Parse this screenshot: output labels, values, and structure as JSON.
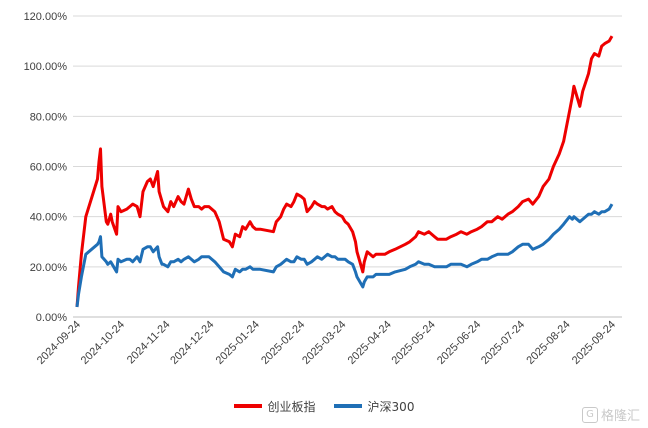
{
  "chart_data": {
    "type": "line",
    "title": "",
    "xlabel": "",
    "ylabel": "",
    "ylim": [
      0,
      120
    ],
    "y_ticks": [
      "0.00%",
      "20.00%",
      "40.00%",
      "60.00%",
      "80.00%",
      "100.00%",
      "120.00%"
    ],
    "x_ticks": [
      "2024-09-24",
      "2024-10-24",
      "2024-11-24",
      "2024-12-24",
      "2025-01-24",
      "2025-02-24",
      "2025-03-24",
      "2025-04-24",
      "2025-05-24",
      "2025-06-24",
      "2025-07-24",
      "2025-08-24",
      "2025-09-24"
    ],
    "grid": "horizontal",
    "legend_placement": "bottom",
    "series": [
      {
        "name": "创业板指",
        "color": "#ee0000",
        "points": [
          [
            "2024-09-24",
            4
          ],
          [
            "2024-09-25",
            12
          ],
          [
            "2024-09-27",
            25
          ],
          [
            "2024-09-30",
            40
          ],
          [
            "2024-10-08",
            55
          ],
          [
            "2024-10-09",
            62
          ],
          [
            "2024-10-10",
            67
          ],
          [
            "2024-10-11",
            52
          ],
          [
            "2024-10-14",
            38
          ],
          [
            "2024-10-15",
            37
          ],
          [
            "2024-10-17",
            41
          ],
          [
            "2024-10-18",
            38
          ],
          [
            "2024-10-21",
            33
          ],
          [
            "2024-10-22",
            44
          ],
          [
            "2024-10-24",
            42
          ],
          [
            "2024-10-28",
            43
          ],
          [
            "2024-10-30",
            44
          ],
          [
            "2024-11-01",
            45
          ],
          [
            "2024-11-04",
            44
          ],
          [
            "2024-11-06",
            40
          ],
          [
            "2024-11-08",
            50
          ],
          [
            "2024-11-11",
            54
          ],
          [
            "2024-11-13",
            55
          ],
          [
            "2024-11-15",
            52
          ],
          [
            "2024-11-18",
            58
          ],
          [
            "2024-11-19",
            50
          ],
          [
            "2024-11-21",
            46
          ],
          [
            "2024-11-22",
            44
          ],
          [
            "2024-11-25",
            42
          ],
          [
            "2024-11-27",
            46
          ],
          [
            "2024-11-29",
            44
          ],
          [
            "2024-12-02",
            48
          ],
          [
            "2024-12-04",
            46
          ],
          [
            "2024-12-06",
            45
          ],
          [
            "2024-12-09",
            51
          ],
          [
            "2024-12-11",
            47
          ],
          [
            "2024-12-13",
            44
          ],
          [
            "2024-12-16",
            44
          ],
          [
            "2024-12-18",
            43
          ],
          [
            "2024-12-20",
            44
          ],
          [
            "2024-12-23",
            44
          ],
          [
            "2024-12-25",
            43
          ],
          [
            "2024-12-27",
            42
          ],
          [
            "2024-12-30",
            38
          ],
          [
            "2025-01-02",
            31
          ],
          [
            "2025-01-06",
            30
          ],
          [
            "2025-01-08",
            28
          ],
          [
            "2025-01-10",
            33
          ],
          [
            "2025-01-13",
            32
          ],
          [
            "2025-01-15",
            36
          ],
          [
            "2025-01-17",
            35
          ],
          [
            "2025-01-20",
            38
          ],
          [
            "2025-01-22",
            36
          ],
          [
            "2025-01-24",
            35
          ],
          [
            "2025-01-27",
            35
          ],
          [
            "2025-02-05",
            34
          ],
          [
            "2025-02-07",
            38
          ],
          [
            "2025-02-10",
            40
          ],
          [
            "2025-02-12",
            43
          ],
          [
            "2025-02-14",
            45
          ],
          [
            "2025-02-17",
            44
          ],
          [
            "2025-02-19",
            46
          ],
          [
            "2025-02-21",
            49
          ],
          [
            "2025-02-24",
            48
          ],
          [
            "2025-02-26",
            47
          ],
          [
            "2025-02-28",
            42
          ],
          [
            "2025-03-03",
            44
          ],
          [
            "2025-03-05",
            46
          ],
          [
            "2025-03-07",
            45
          ],
          [
            "2025-03-10",
            44
          ],
          [
            "2025-03-12",
            44
          ],
          [
            "2025-03-14",
            43
          ],
          [
            "2025-03-17",
            44
          ],
          [
            "2025-03-19",
            42
          ],
          [
            "2025-03-21",
            41
          ],
          [
            "2025-03-24",
            40
          ],
          [
            "2025-03-26",
            38
          ],
          [
            "2025-03-28",
            37
          ],
          [
            "2025-03-31",
            34
          ],
          [
            "2025-04-02",
            30
          ],
          [
            "2025-04-03",
            26
          ],
          [
            "2025-04-07",
            18
          ],
          [
            "2025-04-08",
            22
          ],
          [
            "2025-04-10",
            26
          ],
          [
            "2025-04-14",
            24
          ],
          [
            "2025-04-16",
            25
          ],
          [
            "2025-04-18",
            25
          ],
          [
            "2025-04-22",
            25
          ],
          [
            "2025-04-25",
            26
          ],
          [
            "2025-04-29",
            27
          ],
          [
            "2025-05-06",
            29
          ],
          [
            "2025-05-09",
            30
          ],
          [
            "2025-05-13",
            32
          ],
          [
            "2025-05-15",
            34
          ],
          [
            "2025-05-19",
            33
          ],
          [
            "2025-05-22",
            34
          ],
          [
            "2025-05-26",
            32
          ],
          [
            "2025-05-28",
            31
          ],
          [
            "2025-06-03",
            31
          ],
          [
            "2025-06-06",
            32
          ],
          [
            "2025-06-10",
            33
          ],
          [
            "2025-06-13",
            34
          ],
          [
            "2025-06-17",
            33
          ],
          [
            "2025-06-20",
            34
          ],
          [
            "2025-06-24",
            35
          ],
          [
            "2025-06-27",
            36
          ],
          [
            "2025-07-01",
            38
          ],
          [
            "2025-07-04",
            38
          ],
          [
            "2025-07-08",
            40
          ],
          [
            "2025-07-11",
            39
          ],
          [
            "2025-07-15",
            41
          ],
          [
            "2025-07-18",
            42
          ],
          [
            "2025-07-22",
            44
          ],
          [
            "2025-07-25",
            46
          ],
          [
            "2025-07-29",
            47
          ],
          [
            "2025-08-01",
            45
          ],
          [
            "2025-08-05",
            48
          ],
          [
            "2025-08-08",
            52
          ],
          [
            "2025-08-12",
            55
          ],
          [
            "2025-08-15",
            60
          ],
          [
            "2025-08-19",
            65
          ],
          [
            "2025-08-22",
            70
          ],
          [
            "2025-08-26",
            82
          ],
          [
            "2025-08-28",
            88
          ],
          [
            "2025-08-29",
            92
          ],
          [
            "2025-09-02",
            84
          ],
          [
            "2025-09-04",
            90
          ],
          [
            "2025-09-08",
            97
          ],
          [
            "2025-09-10",
            103
          ],
          [
            "2025-09-12",
            105
          ],
          [
            "2025-09-15",
            104
          ],
          [
            "2025-09-17",
            108
          ],
          [
            "2025-09-19",
            109
          ],
          [
            "2025-09-22",
            110
          ],
          [
            "2025-09-24",
            112
          ]
        ]
      },
      {
        "name": "沪深300",
        "color": "#1f6fb6",
        "points": [
          [
            "2024-09-24",
            4
          ],
          [
            "2024-09-25",
            9
          ],
          [
            "2024-09-27",
            16
          ],
          [
            "2024-09-30",
            25
          ],
          [
            "2024-10-08",
            29
          ],
          [
            "2024-10-09",
            30
          ],
          [
            "2024-10-10",
            32
          ],
          [
            "2024-10-11",
            24
          ],
          [
            "2024-10-14",
            22
          ],
          [
            "2024-10-15",
            21
          ],
          [
            "2024-10-17",
            22
          ],
          [
            "2024-10-18",
            21
          ],
          [
            "2024-10-21",
            18
          ],
          [
            "2024-10-22",
            23
          ],
          [
            "2024-10-24",
            22
          ],
          [
            "2024-10-28",
            23
          ],
          [
            "2024-10-30",
            23
          ],
          [
            "2024-11-01",
            22
          ],
          [
            "2024-11-04",
            24
          ],
          [
            "2024-11-06",
            22
          ],
          [
            "2024-11-08",
            27
          ],
          [
            "2024-11-11",
            28
          ],
          [
            "2024-11-13",
            28
          ],
          [
            "2024-11-15",
            26
          ],
          [
            "2024-11-18",
            28
          ],
          [
            "2024-11-19",
            24
          ],
          [
            "2024-11-21",
            21
          ],
          [
            "2024-11-22",
            21
          ],
          [
            "2024-11-25",
            20
          ],
          [
            "2024-11-27",
            22
          ],
          [
            "2024-11-29",
            22
          ],
          [
            "2024-12-02",
            23
          ],
          [
            "2024-12-04",
            22
          ],
          [
            "2024-12-06",
            23
          ],
          [
            "2024-12-09",
            24
          ],
          [
            "2024-12-11",
            23
          ],
          [
            "2024-12-13",
            22
          ],
          [
            "2024-12-16",
            23
          ],
          [
            "2024-12-18",
            24
          ],
          [
            "2024-12-20",
            24
          ],
          [
            "2024-12-23",
            24
          ],
          [
            "2024-12-25",
            23
          ],
          [
            "2024-12-27",
            22
          ],
          [
            "2024-12-30",
            20
          ],
          [
            "2025-01-02",
            18
          ],
          [
            "2025-01-06",
            17
          ],
          [
            "2025-01-08",
            16
          ],
          [
            "2025-01-10",
            19
          ],
          [
            "2025-01-13",
            18
          ],
          [
            "2025-01-15",
            19
          ],
          [
            "2025-01-17",
            19
          ],
          [
            "2025-01-20",
            20
          ],
          [
            "2025-01-22",
            19
          ],
          [
            "2025-01-24",
            19
          ],
          [
            "2025-01-27",
            19
          ],
          [
            "2025-02-05",
            18
          ],
          [
            "2025-02-07",
            20
          ],
          [
            "2025-02-10",
            21
          ],
          [
            "2025-02-12",
            22
          ],
          [
            "2025-02-14",
            23
          ],
          [
            "2025-02-17",
            22
          ],
          [
            "2025-02-19",
            22
          ],
          [
            "2025-02-21",
            24
          ],
          [
            "2025-02-24",
            23
          ],
          [
            "2025-02-26",
            23
          ],
          [
            "2025-02-28",
            21
          ],
          [
            "2025-03-03",
            22
          ],
          [
            "2025-03-05",
            23
          ],
          [
            "2025-03-07",
            24
          ],
          [
            "2025-03-10",
            23
          ],
          [
            "2025-03-12",
            24
          ],
          [
            "2025-03-14",
            25
          ],
          [
            "2025-03-17",
            24
          ],
          [
            "2025-03-19",
            24
          ],
          [
            "2025-03-21",
            23
          ],
          [
            "2025-03-24",
            23
          ],
          [
            "2025-03-26",
            23
          ],
          [
            "2025-03-28",
            22
          ],
          [
            "2025-03-31",
            21
          ],
          [
            "2025-04-02",
            18
          ],
          [
            "2025-04-03",
            16
          ],
          [
            "2025-04-07",
            12
          ],
          [
            "2025-04-08",
            14
          ],
          [
            "2025-04-10",
            16
          ],
          [
            "2025-04-14",
            16
          ],
          [
            "2025-04-16",
            17
          ],
          [
            "2025-04-18",
            17
          ],
          [
            "2025-04-22",
            17
          ],
          [
            "2025-04-25",
            17
          ],
          [
            "2025-04-29",
            18
          ],
          [
            "2025-05-06",
            19
          ],
          [
            "2025-05-09",
            20
          ],
          [
            "2025-05-13",
            21
          ],
          [
            "2025-05-15",
            22
          ],
          [
            "2025-05-19",
            21
          ],
          [
            "2025-05-22",
            21
          ],
          [
            "2025-05-26",
            20
          ],
          [
            "2025-05-28",
            20
          ],
          [
            "2025-06-03",
            20
          ],
          [
            "2025-06-06",
            21
          ],
          [
            "2025-06-10",
            21
          ],
          [
            "2025-06-13",
            21
          ],
          [
            "2025-06-17",
            20
          ],
          [
            "2025-06-20",
            21
          ],
          [
            "2025-06-24",
            22
          ],
          [
            "2025-06-27",
            23
          ],
          [
            "2025-07-01",
            23
          ],
          [
            "2025-07-04",
            24
          ],
          [
            "2025-07-08",
            25
          ],
          [
            "2025-07-11",
            25
          ],
          [
            "2025-07-15",
            25
          ],
          [
            "2025-07-18",
            26
          ],
          [
            "2025-07-22",
            28
          ],
          [
            "2025-07-25",
            29
          ],
          [
            "2025-07-29",
            29
          ],
          [
            "2025-08-01",
            27
          ],
          [
            "2025-08-05",
            28
          ],
          [
            "2025-08-08",
            29
          ],
          [
            "2025-08-12",
            31
          ],
          [
            "2025-08-15",
            33
          ],
          [
            "2025-08-19",
            35
          ],
          [
            "2025-08-22",
            37
          ],
          [
            "2025-08-26",
            40
          ],
          [
            "2025-08-28",
            39
          ],
          [
            "2025-08-29",
            40
          ],
          [
            "2025-09-02",
            38
          ],
          [
            "2025-09-04",
            39
          ],
          [
            "2025-09-08",
            41
          ],
          [
            "2025-09-10",
            41
          ],
          [
            "2025-09-12",
            42
          ],
          [
            "2025-09-15",
            41
          ],
          [
            "2025-09-17",
            42
          ],
          [
            "2025-09-19",
            42
          ],
          [
            "2025-09-22",
            43
          ],
          [
            "2025-09-24",
            45
          ]
        ]
      }
    ]
  },
  "watermark": {
    "text": "格隆汇",
    "icon": "G-logo-icon"
  }
}
